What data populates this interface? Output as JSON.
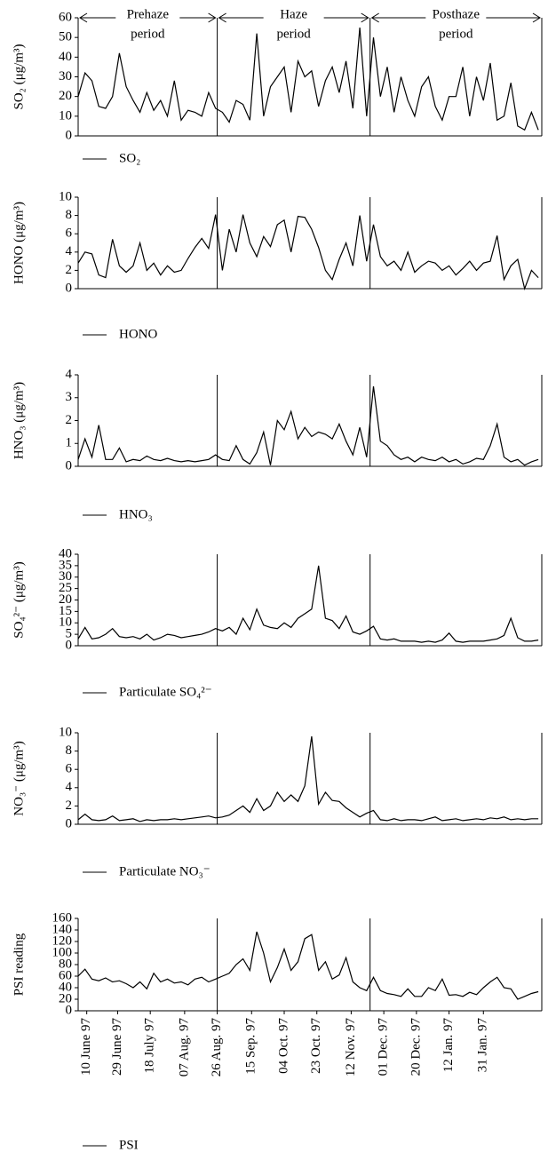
{
  "chart_data": {
    "type": "line",
    "x": [
      0,
      4,
      8,
      12,
      16,
      20,
      24,
      28,
      32,
      36,
      40,
      44,
      48,
      52,
      56,
      60,
      64,
      68,
      72,
      76,
      80,
      84,
      88,
      92,
      96,
      100,
      104,
      108,
      112,
      116,
      120,
      124,
      128,
      132,
      136,
      140,
      144,
      148,
      152,
      156,
      160,
      164,
      168,
      172,
      176,
      180,
      184,
      188,
      192,
      196,
      200,
      204,
      208,
      212,
      216,
      220,
      224,
      228,
      232,
      236,
      240,
      244,
      248,
      252,
      256,
      260,
      264,
      268
    ],
    "xlim": [
      0,
      270
    ],
    "xticks": [
      {
        "value": 5,
        "label": "10 June 97"
      },
      {
        "value": 23,
        "label": "29 June 97"
      },
      {
        "value": 42,
        "label": "18 July 97"
      },
      {
        "value": 62,
        "label": "07 Aug. 97"
      },
      {
        "value": 81,
        "label": "26 Aug. 97"
      },
      {
        "value": 101,
        "label": "15 Sep. 97"
      },
      {
        "value": 120,
        "label": "04 Oct. 97"
      },
      {
        "value": 139,
        "label": "23 Oct. 97"
      },
      {
        "value": 159,
        "label": "12 Nov. 97"
      },
      {
        "value": 178,
        "label": "01 Dec. 97"
      },
      {
        "value": 197,
        "label": "20 Dec. 97"
      },
      {
        "value": 216,
        "label": "12 Jan. 97"
      },
      {
        "value": 236,
        "label": "31 Jan. 97"
      }
    ],
    "period_lines": [
      81,
      170
    ],
    "annotations": [
      [
        "Prehaze",
        "period"
      ],
      [
        "Haze",
        "period"
      ],
      [
        "Posthaze",
        "period"
      ]
    ],
    "series": [
      {
        "name": "SO₂",
        "ylabel": "SO₂ (μg/m³)",
        "color": "#000000",
        "ylim": [
          0,
          60
        ],
        "yticks": [
          0,
          10,
          20,
          30,
          40,
          50,
          60
        ],
        "values": [
          20,
          32,
          28,
          15,
          14,
          20,
          42,
          25,
          18,
          12,
          22,
          13,
          18,
          10,
          28,
          8,
          13,
          12,
          10,
          22,
          14,
          12,
          7,
          18,
          16,
          8,
          52,
          10,
          25,
          30,
          35,
          12,
          38,
          30,
          33,
          15,
          28,
          35,
          22,
          38,
          14,
          55,
          10,
          50,
          20,
          35,
          12,
          30,
          18,
          10,
          25,
          30,
          15,
          8,
          20,
          20,
          35,
          10,
          30,
          18,
          37,
          8,
          10,
          27,
          5,
          3,
          12,
          3
        ]
      },
      {
        "name": "HONO",
        "ylabel": "HONO (μg/m³)",
        "color": "#000000",
        "ylim": [
          0,
          10
        ],
        "yticks": [
          0,
          2,
          4,
          6,
          8,
          10
        ],
        "values": [
          2.8,
          4,
          3.8,
          1.5,
          1.2,
          5.4,
          2.5,
          1.8,
          2.5,
          5,
          2,
          2.8,
          1.5,
          2.5,
          1.8,
          2,
          3.3,
          4.5,
          5.5,
          4.4,
          8.1,
          2,
          6.5,
          4,
          8.1,
          5,
          3.5,
          5.7,
          4.6,
          7,
          7.5,
          4,
          7.9,
          7.8,
          6.5,
          4.5,
          2,
          1,
          3.2,
          5,
          2.5,
          8,
          3,
          7,
          3.5,
          2.5,
          3,
          2,
          4,
          1.8,
          2.5,
          3,
          2.8,
          2,
          2.5,
          1.5,
          2.2,
          3,
          2,
          2.8,
          3,
          5.8,
          1,
          2.5,
          3.2,
          0,
          2,
          1.2
        ]
      },
      {
        "name": "HNO₃",
        "ylabel": "HNO₃ (μg/m³)",
        "color": "#000000",
        "ylim": [
          0,
          4
        ],
        "yticks": [
          0,
          1,
          2,
          3,
          4
        ],
        "values": [
          0.3,
          1.2,
          0.4,
          1.8,
          0.3,
          0.3,
          0.8,
          0.2,
          0.3,
          0.25,
          0.45,
          0.3,
          0.25,
          0.35,
          0.25,
          0.2,
          0.25,
          0.2,
          0.25,
          0.3,
          0.5,
          0.3,
          0.25,
          0.9,
          0.3,
          0.1,
          0.6,
          1.5,
          0.05,
          2.0,
          1.6,
          2.4,
          1.2,
          1.7,
          1.3,
          1.5,
          1.4,
          1.2,
          1.85,
          1.1,
          0.5,
          1.7,
          0.4,
          3.5,
          1.1,
          0.9,
          0.5,
          0.3,
          0.4,
          0.2,
          0.4,
          0.3,
          0.25,
          0.4,
          0.2,
          0.3,
          0.1,
          0.2,
          0.35,
          0.3,
          0.9,
          1.85,
          0.4,
          0.2,
          0.3,
          0.05,
          0.2,
          0.3
        ]
      },
      {
        "name": "Particulate SO₄²⁻",
        "ylabel": "SO₄²⁻ (μg/m³)",
        "color": "#000000",
        "ylim": [
          0,
          40
        ],
        "yticks": [
          0,
          5,
          10,
          15,
          20,
          25,
          30,
          35,
          40
        ],
        "values": [
          3,
          8,
          3,
          3.5,
          5,
          7.5,
          4,
          3.5,
          4,
          3,
          5,
          2.5,
          3.5,
          5,
          4.5,
          3.5,
          4,
          4.5,
          5,
          6,
          7.5,
          6.5,
          8,
          5,
          12,
          7,
          16,
          9,
          8,
          7.5,
          10,
          8,
          12,
          14,
          16,
          35,
          12,
          11,
          7.5,
          13,
          6,
          5,
          6.5,
          8.5,
          3,
          2.5,
          3,
          2,
          2,
          2,
          1.5,
          2,
          1.5,
          2.5,
          5.5,
          2,
          1.5,
          2,
          2,
          2,
          2.5,
          3,
          4.5,
          12,
          3.5,
          2,
          2,
          2.5
        ]
      },
      {
        "name": "Particulate NO₃⁻",
        "ylabel": "NO₃⁻ (μg/m³)",
        "color": "#000000",
        "ylim": [
          0,
          10
        ],
        "yticks": [
          0,
          2,
          4,
          6,
          8,
          10
        ],
        "values": [
          0.5,
          1.1,
          0.5,
          0.4,
          0.5,
          0.9,
          0.4,
          0.5,
          0.6,
          0.3,
          0.5,
          0.4,
          0.5,
          0.5,
          0.6,
          0.5,
          0.6,
          0.7,
          0.8,
          0.9,
          0.7,
          0.8,
          1,
          1.5,
          2,
          1.3,
          2.8,
          1.5,
          2,
          3.5,
          2.5,
          3.2,
          2.5,
          4.2,
          9.6,
          2.2,
          3.5,
          2.6,
          2.5,
          1.8,
          1.3,
          0.8,
          1.2,
          1.5,
          0.5,
          0.4,
          0.6,
          0.4,
          0.5,
          0.5,
          0.4,
          0.6,
          0.8,
          0.4,
          0.5,
          0.6,
          0.4,
          0.5,
          0.6,
          0.5,
          0.7,
          0.6,
          0.8,
          0.5,
          0.6,
          0.5,
          0.6,
          0.6
        ]
      },
      {
        "name": "PSI",
        "ylabel": "PSI reading",
        "color": "#000000",
        "ylim": [
          0,
          160
        ],
        "yticks": [
          0,
          20,
          40,
          60,
          80,
          100,
          120,
          140,
          160
        ],
        "values": [
          60,
          72,
          55,
          52,
          57,
          50,
          52,
          47,
          40,
          50,
          38,
          65,
          50,
          55,
          48,
          50,
          45,
          55,
          58,
          50,
          55,
          60,
          65,
          80,
          90,
          70,
          137,
          100,
          50,
          75,
          107,
          70,
          85,
          125,
          132,
          70,
          85,
          55,
          62,
          92,
          50,
          40,
          35,
          58,
          35,
          30,
          28,
          25,
          38,
          25,
          25,
          40,
          35,
          55,
          27,
          28,
          25,
          32,
          28,
          40,
          50,
          58,
          40,
          38,
          20,
          25,
          30,
          33
        ]
      }
    ]
  }
}
